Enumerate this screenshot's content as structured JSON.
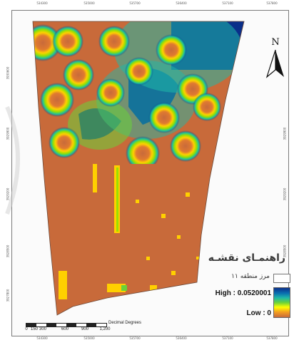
{
  "map": {
    "top_ticks": [
      "534300",
      "535000",
      "535700",
      "536400",
      "537100",
      "537800"
    ],
    "bottom_ticks": [
      "534300",
      "535000",
      "535700",
      "536400",
      "537100",
      "537800"
    ],
    "left_ticks": [
      "3930600",
      "3929900",
      "3929200",
      "3928500",
      "3927800"
    ],
    "right_ticks": [
      "3929900",
      "3929200",
      "3928500",
      "3927800"
    ],
    "heatmap_colors": {
      "high": "#0a2f8a",
      "mid_high": "#1fb8a8",
      "mid": "#6ad13a",
      "mid_low": "#ffff00",
      "low": "#c86a3a"
    }
  },
  "north_arrow": {
    "letter": "N"
  },
  "legend": {
    "title": "راهنمـای نقشـه",
    "boundary_label": "مرز منطقه ۱۱",
    "high_label": "High : 0.0520001",
    "low_label": "Low : 0"
  },
  "scale_bar": {
    "units": "Decimal Degrees",
    "numbers": [
      "0",
      "150",
      "300",
      "600",
      "900",
      "1,200"
    ]
  }
}
